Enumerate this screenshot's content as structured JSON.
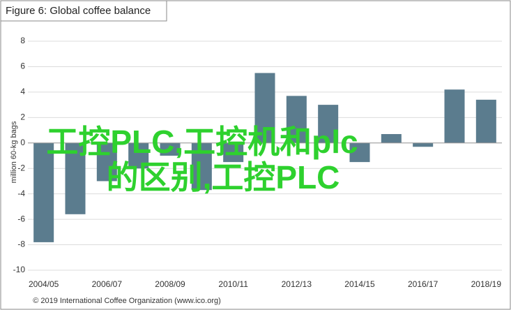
{
  "chart_data": {
    "type": "bar",
    "title": "Figure 6: Global coffee balance",
    "y_label": "million 60-kg bags",
    "categories": [
      "2004/05",
      null,
      "2006/07",
      null,
      "2008/09",
      null,
      "2010/11",
      null,
      "2012/13",
      null,
      "2014/15",
      null,
      "2016/17",
      null,
      "2018/19"
    ],
    "values": [
      -7.8,
      -5.6,
      -3.0,
      -2.0,
      -1.0,
      -3.7,
      -1.5,
      5.5,
      3.7,
      3.0,
      -1.5,
      0.7,
      -0.3,
      4.2,
      3.4
    ],
    "color": "#5b7c8e",
    "ylim": [
      -10,
      8
    ],
    "yticks": [
      -10,
      -8,
      -6,
      -4,
      -2,
      0,
      2,
      4,
      6,
      8
    ],
    "grid": true,
    "source": "© 2019 International Coffee Organization (www.ico.org)",
    "watermark": [
      "工控PLC,工控机和plc",
      "的区别,工控PLC"
    ]
  }
}
